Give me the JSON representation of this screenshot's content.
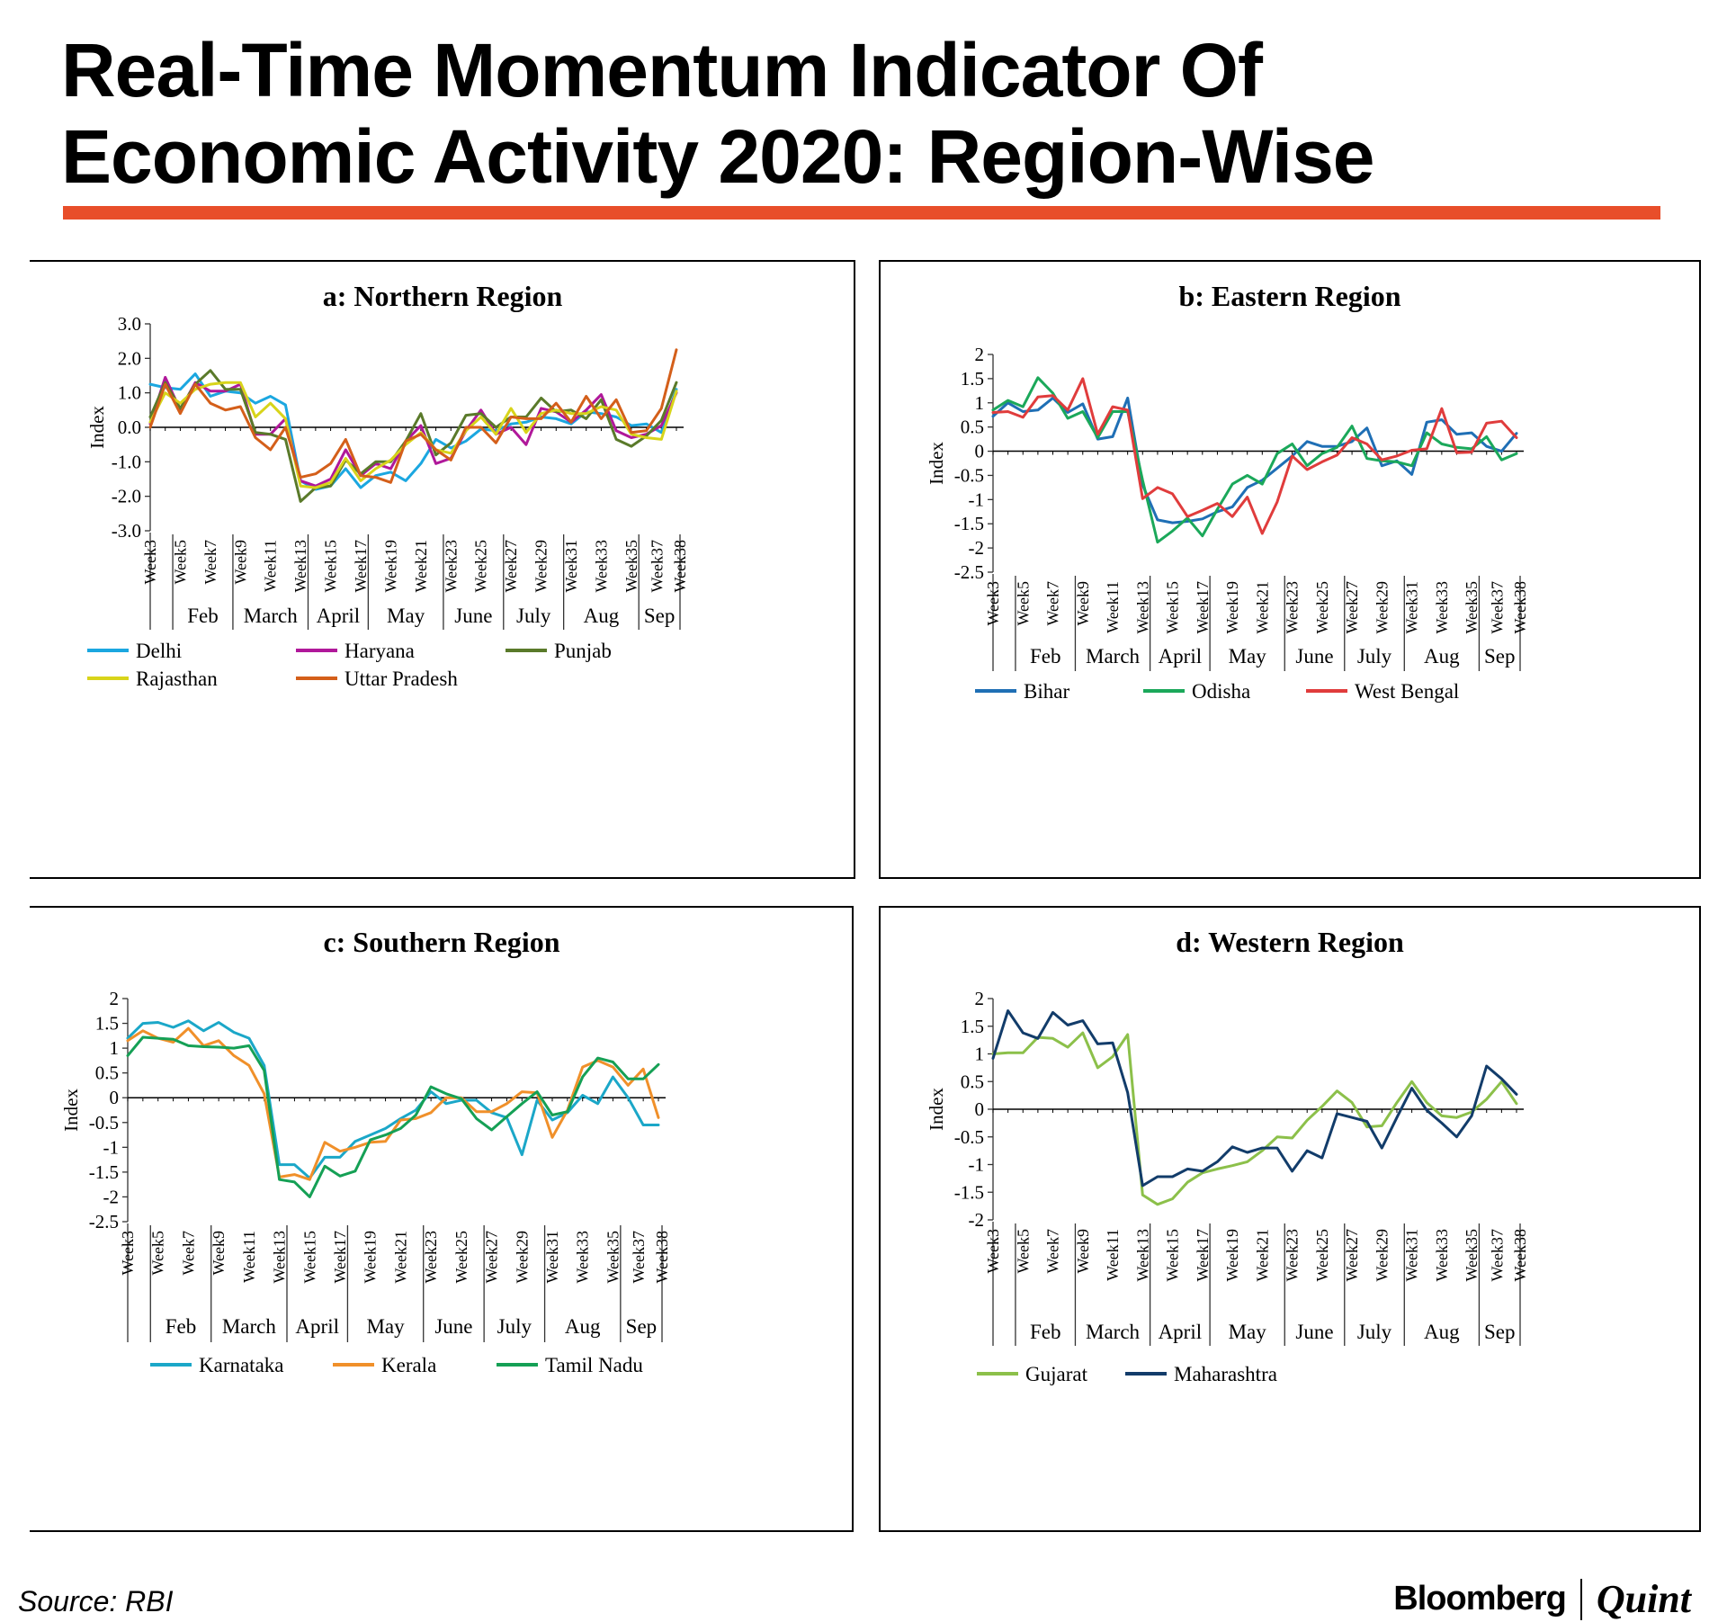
{
  "header": {
    "title_line1": "Real-Time Momentum Indicator Of",
    "title_line2": "Economic Activity 2020: Region-Wise",
    "accent_color": "#e84e2a"
  },
  "footer": {
    "source": "Source: RBI",
    "brand_bloomberg": "Bloomberg",
    "brand_quint": "Quint"
  },
  "chart_data": [
    {
      "type": "line",
      "title": "a: Northern Region",
      "ylabel": "Index",
      "xlabel": "",
      "ylim": [
        -3.0,
        3.0
      ],
      "yticks": [
        3.0,
        2.0,
        1.0,
        0.0,
        -1.0,
        -2.0,
        -3.0
      ],
      "ytick_labels": [
        "3.0",
        "2.0",
        "1.0",
        "0.0",
        "-1.0",
        "-2.0",
        "-3.0"
      ],
      "x": [
        "Week3",
        "Week4",
        "Week5",
        "Week6",
        "Week7",
        "Week8",
        "Week9",
        "Week10",
        "Week11",
        "Week12",
        "Week13",
        "Week14",
        "Week15",
        "Week16",
        "Week17",
        "Week18",
        "Week19",
        "Week20",
        "Week21",
        "Week22",
        "Week23",
        "Week24",
        "Week25",
        "Week26",
        "Week27",
        "Week28",
        "Week29",
        "Week30",
        "Week31",
        "Week32",
        "Week33",
        "Week34",
        "Week35",
        "Week36",
        "Week37",
        "Week38"
      ],
      "xtick_labels": [
        "Week3",
        "Week5",
        "Week7",
        "Week9",
        "Week11",
        "Week13",
        "Week15",
        "Week17",
        "Week19",
        "Week21",
        "Week23",
        "Week25",
        "Week27",
        "Week29",
        "Week31",
        "Week33",
        "Week35",
        "Week37",
        "Week38"
      ],
      "months": [
        "Feb",
        "March",
        "April",
        "May",
        "June",
        "July",
        "Aug",
        "Sep"
      ],
      "month_bounds": [
        1,
        5,
        10,
        14,
        19,
        23,
        27,
        32,
        35
      ],
      "legend": "bottom",
      "series": [
        {
          "name": "Delhi",
          "color": "#1ba7e0",
          "values": [
            1.25,
            1.15,
            1.1,
            1.55,
            0.9,
            1.05,
            1.0,
            0.7,
            0.9,
            0.65,
            -1.55,
            -1.8,
            -1.7,
            -1.2,
            -1.75,
            -1.4,
            -1.3,
            -1.55,
            -1.05,
            -0.35,
            -0.6,
            -0.4,
            -0.05,
            -0.1,
            0.1,
            0.15,
            0.3,
            0.25,
            0.1,
            0.45,
            0.4,
            0.3,
            0.05,
            0.1,
            -0.15,
            1.1
          ]
        },
        {
          "name": "Haryana",
          "color": "#b0189a",
          "values": [
            0.1,
            1.45,
            0.5,
            1.3,
            1.05,
            1.05,
            1.25,
            -0.2,
            -0.2,
            0.25,
            -1.55,
            -1.7,
            -1.5,
            -0.65,
            -1.4,
            -1.05,
            -1.2,
            -0.4,
            0.05,
            -1.05,
            -0.9,
            -0.1,
            0.5,
            -0.2,
            0.0,
            -0.5,
            0.55,
            0.45,
            0.15,
            0.5,
            0.95,
            -0.1,
            -0.3,
            -0.2,
            0.05,
            1.0
          ]
        },
        {
          "name": "Punjab",
          "color": "#5a7a2a",
          "values": [
            0.3,
            1.3,
            0.55,
            1.25,
            1.65,
            1.1,
            1.1,
            -0.15,
            -0.2,
            -0.35,
            -2.15,
            -1.75,
            -1.7,
            -0.95,
            -1.35,
            -1.0,
            -1.0,
            -0.4,
            0.4,
            -0.8,
            -0.45,
            0.35,
            0.4,
            0.0,
            0.3,
            0.3,
            0.85,
            0.45,
            0.5,
            0.25,
            0.8,
            -0.35,
            -0.55,
            -0.25,
            0.2,
            1.3
          ]
        },
        {
          "name": "Rajasthan",
          "color": "#d8d41a",
          "values": [
            0.15,
            1.0,
            0.7,
            1.1,
            1.25,
            1.3,
            1.3,
            0.3,
            0.7,
            0.25,
            -1.7,
            -1.75,
            -1.6,
            -0.9,
            -1.55,
            -1.2,
            -0.95,
            -0.5,
            -0.15,
            -0.65,
            -0.75,
            -0.1,
            0.3,
            -0.2,
            0.55,
            -0.15,
            0.4,
            0.5,
            0.4,
            0.4,
            0.6,
            0.5,
            -0.2,
            -0.3,
            -0.35,
            1.05
          ]
        },
        {
          "name": "Uttar Pradesh",
          "color": "#d45f1a",
          "values": [
            0.0,
            1.25,
            0.4,
            1.25,
            0.7,
            0.5,
            0.6,
            -0.3,
            -0.65,
            0.0,
            -1.45,
            -1.35,
            -1.05,
            -0.35,
            -1.4,
            -1.45,
            -1.6,
            -0.4,
            -0.2,
            -0.65,
            -0.95,
            0.0,
            0.0,
            -0.45,
            0.3,
            0.25,
            0.25,
            0.7,
            0.15,
            0.9,
            0.25,
            0.8,
            -0.15,
            -0.1,
            0.55,
            2.25
          ]
        }
      ]
    },
    {
      "type": "line",
      "title": "b: Eastern Region",
      "ylabel": "Index",
      "xlabel": "",
      "ylim": [
        -2.5,
        2
      ],
      "yticks": [
        2,
        1.5,
        1,
        0.5,
        0,
        -0.5,
        -1,
        -1.5,
        -2,
        -2.5
      ],
      "ytick_labels": [
        "2",
        "1.5",
        "1",
        "0.5",
        "0",
        "-0.5",
        "-1",
        "-1.5",
        "-2",
        "-2.5"
      ],
      "x": [
        "Week3",
        "Week4",
        "Week5",
        "Week6",
        "Week7",
        "Week8",
        "Week9",
        "Week10",
        "Week11",
        "Week12",
        "Week13",
        "Week14",
        "Week15",
        "Week16",
        "Week17",
        "Week18",
        "Week19",
        "Week20",
        "Week21",
        "Week22",
        "Week23",
        "Week24",
        "Week25",
        "Week26",
        "Week27",
        "Week28",
        "Week29",
        "Week30",
        "Week31",
        "Week32",
        "Week33",
        "Week34",
        "Week35",
        "Week36",
        "Week37",
        "Week38"
      ],
      "xtick_labels": [
        "Week3",
        "Week5",
        "Week7",
        "Week9",
        "Week11",
        "Week13",
        "Week15",
        "Week17",
        "Week19",
        "Week21",
        "Week23",
        "Week25",
        "Week27",
        "Week29",
        "Week31",
        "Week33",
        "Week35",
        "Week37",
        "Week38"
      ],
      "months": [
        "Feb",
        "March",
        "April",
        "May",
        "June",
        "July",
        "Aug",
        "Sep"
      ],
      "month_bounds": [
        1,
        5,
        10,
        14,
        19,
        23,
        27,
        32,
        35
      ],
      "legend": "bottom",
      "series": [
        {
          "name": "Bihar",
          "color": "#1f6fb5",
          "values": [
            0.72,
            1.0,
            0.82,
            0.85,
            1.1,
            0.8,
            0.98,
            0.25,
            0.3,
            1.1,
            -0.7,
            -1.42,
            -1.48,
            -1.45,
            -1.4,
            -1.25,
            -1.15,
            -0.75,
            -0.6,
            -0.35,
            -0.1,
            0.2,
            0.1,
            0.1,
            0.2,
            0.48,
            -0.3,
            -0.2,
            -0.48,
            0.6,
            0.65,
            0.35,
            0.38,
            0.1,
            0.0,
            0.37
          ]
        },
        {
          "name": "Odisha",
          "color": "#1ba85a",
          "values": [
            0.85,
            1.05,
            0.92,
            1.52,
            1.2,
            0.68,
            0.82,
            0.28,
            0.82,
            0.82,
            -0.6,
            -1.88,
            -1.65,
            -1.38,
            -1.75,
            -1.2,
            -0.68,
            -0.5,
            -0.68,
            -0.05,
            0.15,
            -0.3,
            -0.05,
            0.08,
            0.52,
            -0.15,
            -0.2,
            -0.22,
            -0.3,
            0.38,
            0.15,
            0.08,
            0.05,
            0.3,
            -0.18,
            -0.05
          ]
        },
        {
          "name": "West Bengal",
          "color": "#e03c3c",
          "values": [
            0.8,
            0.82,
            0.7,
            1.12,
            1.15,
            0.85,
            1.5,
            0.35,
            0.92,
            0.85,
            -0.98,
            -0.75,
            -0.88,
            -1.35,
            -1.22,
            -1.08,
            -1.35,
            -0.95,
            -1.7,
            -1.05,
            -0.1,
            -0.38,
            -0.22,
            -0.08,
            0.28,
            0.15,
            -0.18,
            -0.1,
            0.02,
            0.05,
            0.88,
            -0.03,
            -0.02,
            0.58,
            0.62,
            0.28
          ]
        }
      ]
    },
    {
      "type": "line",
      "title": "c: Southern Region",
      "ylabel": "Index",
      "xlabel": "",
      "ylim": [
        -2.5,
        2
      ],
      "yticks": [
        2,
        1.5,
        1,
        0.5,
        0,
        -0.5,
        -1,
        -1.5,
        -2,
        -2.5
      ],
      "ytick_labels": [
        "2",
        "1.5",
        "1",
        "0.5",
        "0",
        "-0.5",
        "-1",
        "-1.5",
        "-2",
        "-2.5"
      ],
      "x": [
        "Week3",
        "Week4",
        "Week5",
        "Week6",
        "Week7",
        "Week8",
        "Week9",
        "Week10",
        "Week11",
        "Week12",
        "Week13",
        "Week14",
        "Week15",
        "Week16",
        "Week17",
        "Week18",
        "Week19",
        "Week20",
        "Week21",
        "Week22",
        "Week23",
        "Week24",
        "Week25",
        "Week26",
        "Week27",
        "Week28",
        "Week29",
        "Week30",
        "Week31",
        "Week32",
        "Week33",
        "Week34",
        "Week35",
        "Week36",
        "Week37",
        "Week38"
      ],
      "xtick_labels": [
        "Week3",
        "Week5",
        "Week7",
        "Week9",
        "Week11",
        "Week13",
        "Week15",
        "Week17",
        "Week19",
        "Week21",
        "Week23",
        "Week25",
        "Week27",
        "Week29",
        "Week31",
        "Week33",
        "Week35",
        "Week37",
        "Week38"
      ],
      "months": [
        "Feb",
        "March",
        "April",
        "May",
        "June",
        "July",
        "Aug",
        "Sep"
      ],
      "month_bounds": [
        1,
        5,
        10,
        14,
        19,
        23,
        27,
        32,
        35
      ],
      "legend": "bottom",
      "series": [
        {
          "name": "Karnataka",
          "color": "#1ba7c8",
          "values": [
            1.2,
            1.5,
            1.52,
            1.42,
            1.55,
            1.35,
            1.52,
            1.32,
            1.2,
            0.65,
            -1.35,
            -1.35,
            -1.62,
            -1.2,
            -1.2,
            -0.88,
            -0.75,
            -0.62,
            -0.42,
            -0.25,
            0.12,
            -0.12,
            -0.05,
            -0.05,
            -0.3,
            -0.4,
            -1.15,
            -0.05,
            -0.45,
            -0.3,
            0.05,
            -0.12,
            0.42,
            0.0,
            -0.55,
            -0.55
          ]
        },
        {
          "name": "Kerala",
          "color": "#f0902a",
          "values": [
            1.15,
            1.35,
            1.2,
            1.12,
            1.4,
            1.05,
            1.15,
            0.85,
            0.65,
            0.08,
            -1.6,
            -1.55,
            -1.65,
            -0.9,
            -1.08,
            -1.0,
            -0.9,
            -0.88,
            -0.45,
            -0.42,
            -0.3,
            0.0,
            0.0,
            -0.28,
            -0.28,
            -0.12,
            0.12,
            0.1,
            -0.8,
            -0.25,
            0.62,
            0.75,
            0.62,
            0.25,
            0.58,
            -0.4
          ]
        },
        {
          "name": "Tamil Nadu",
          "color": "#15a055",
          "values": [
            0.85,
            1.22,
            1.2,
            1.18,
            1.05,
            1.03,
            1.02,
            1.0,
            1.05,
            0.55,
            -1.65,
            -1.7,
            -2.0,
            -1.38,
            -1.58,
            -1.48,
            -0.85,
            -0.75,
            -0.62,
            -0.35,
            0.22,
            0.08,
            -0.02,
            -0.42,
            -0.65,
            -0.38,
            -0.12,
            0.12,
            -0.35,
            -0.28,
            0.42,
            0.8,
            0.72,
            0.38,
            0.38,
            0.67
          ]
        }
      ]
    },
    {
      "type": "line",
      "title": "d: Western Region",
      "ylabel": "Index",
      "xlabel": "",
      "ylim": [
        -2,
        2
      ],
      "yticks": [
        2,
        1.5,
        1,
        0.5,
        0,
        -0.5,
        -1,
        -1.5,
        -2
      ],
      "ytick_labels": [
        "2",
        "1.5",
        "1",
        "0.5",
        "0",
        "-0.5",
        "-1",
        "-1.5",
        "-2"
      ],
      "x": [
        "Week3",
        "Week4",
        "Week5",
        "Week6",
        "Week7",
        "Week8",
        "Week9",
        "Week10",
        "Week11",
        "Week12",
        "Week13",
        "Week14",
        "Week15",
        "Week16",
        "Week17",
        "Week18",
        "Week19",
        "Week20",
        "Week21",
        "Week22",
        "Week23",
        "Week24",
        "Week25",
        "Week26",
        "Week27",
        "Week28",
        "Week29",
        "Week30",
        "Week31",
        "Week32",
        "Week33",
        "Week34",
        "Week35",
        "Week36",
        "Week37",
        "Week38"
      ],
      "xtick_labels": [
        "Week3",
        "Week5",
        "Week7",
        "Week9",
        "Week11",
        "Week13",
        "Week15",
        "Week17",
        "Week19",
        "Week21",
        "Week23",
        "Week25",
        "Week27",
        "Week29",
        "Week31",
        "Week33",
        "Week35",
        "Week37",
        "Week38"
      ],
      "months": [
        "Feb",
        "March",
        "April",
        "May",
        "June",
        "July",
        "Aug",
        "Sep"
      ],
      "month_bounds": [
        1,
        5,
        10,
        14,
        19,
        23,
        27,
        32,
        35
      ],
      "legend": "bottom",
      "series": [
        {
          "name": "Gujarat",
          "color": "#8cc04a",
          "values": [
            1.0,
            1.02,
            1.02,
            1.3,
            1.28,
            1.12,
            1.38,
            0.75,
            0.95,
            1.35,
            -1.55,
            -1.72,
            -1.62,
            -1.32,
            -1.15,
            -1.08,
            -1.02,
            -0.95,
            -0.75,
            -0.5,
            -0.52,
            -0.2,
            0.05,
            0.33,
            0.12,
            -0.32,
            -0.3,
            0.12,
            0.5,
            0.12,
            -0.12,
            -0.15,
            -0.05,
            0.18,
            0.5,
            0.1
          ]
        },
        {
          "name": "Maharashtra",
          "color": "#123c6a",
          "values": [
            0.92,
            1.78,
            1.38,
            1.28,
            1.75,
            1.52,
            1.6,
            1.18,
            1.2,
            0.3,
            -1.38,
            -1.22,
            -1.22,
            -1.08,
            -1.12,
            -0.95,
            -0.68,
            -0.78,
            -0.7,
            -0.7,
            -1.12,
            -0.75,
            -0.88,
            -0.08,
            -0.15,
            -0.22,
            -0.7,
            -0.15,
            0.38,
            -0.02,
            -0.25,
            -0.5,
            -0.12,
            0.78,
            0.55,
            0.27
          ]
        }
      ]
    }
  ]
}
